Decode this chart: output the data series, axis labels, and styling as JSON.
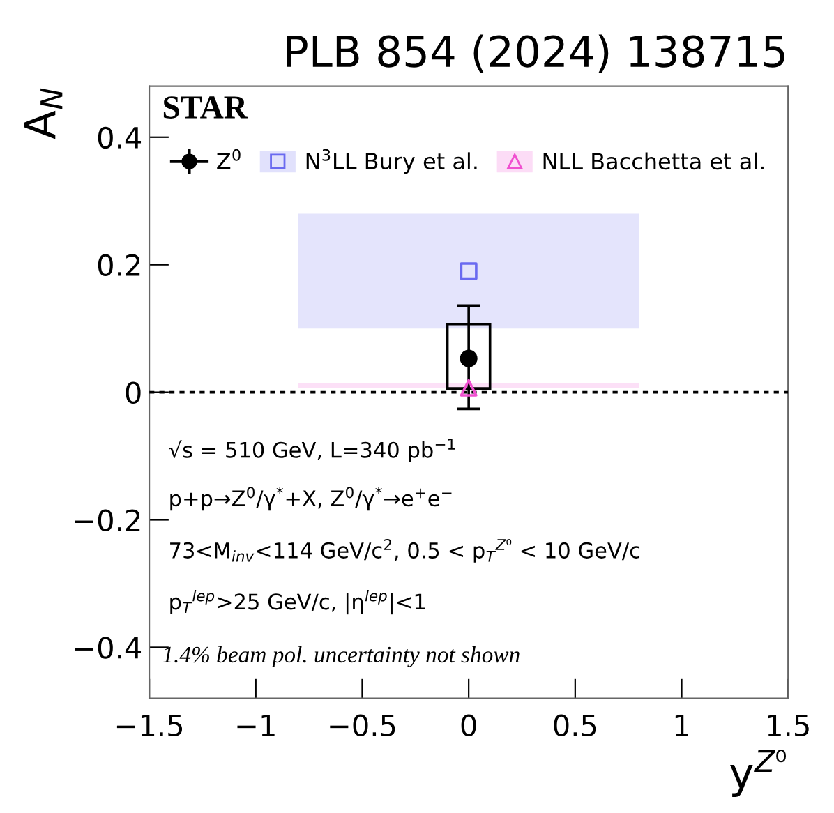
{
  "chart_data": {
    "type": "scatter",
    "title": "PLB 854 (2024) 138715",
    "xlabel": "y$^{Z⁰}$",
    "ylabel": "A$_{N}$",
    "xlim": [
      -1.5,
      1.5
    ],
    "ylim": [
      -0.48,
      0.48
    ],
    "xticks": [
      {
        "value": -1.5,
        "label": "−1.5"
      },
      {
        "value": -1,
        "label": "−1"
      },
      {
        "value": -0.5,
        "label": "−0.5"
      },
      0,
      0.5,
      1,
      1.5
    ],
    "yticks": [
      {
        "value": -0.4,
        "label": "−0.4"
      },
      {
        "value": -0.2,
        "label": "−0.2"
      },
      0,
      0.2,
      0.4
    ],
    "series": [
      {
        "name": "Z$^{0}$",
        "marker": "circle",
        "color": "#000000",
        "x": [
          0
        ],
        "values": [
          0.053
        ],
        "errors": [
          [
            -0.026,
            0.136
          ]
        ]
      },
      {
        "type": "bar",
        "color": "#000000",
        "x": [
          0
        ],
        "base": [
          0.006
        ],
        "values": [
          0.101
        ]
      },
      {
        "name": "N$^{3}$LL Bury et al.",
        "marker": "square",
        "color": "#6a6af0",
        "x": [
          -0.8,
          0,
          0.8
        ],
        "values": [
          null,
          0.19,
          null
        ],
        "lower": [
          0.1,
          0.1,
          0.1
        ],
        "upper": [
          0.28,
          0.28,
          0.28
        ]
      },
      {
        "name": "NLL Bacchetta et al.",
        "marker": "triangle",
        "color": "#f050d0",
        "x": [
          -0.8,
          0,
          0.8
        ],
        "values": [
          null,
          0.007,
          null
        ],
        "lower": [
          0.006,
          0.006,
          0.006
        ],
        "upper": [
          0.014,
          0.014,
          0.014
        ]
      }
    ],
    "ref_lines": [
      {
        "axis": "y",
        "value": 0,
        "line_style": "dotted",
        "color": "#000000"
      }
    ],
    "legend": "top",
    "annotations": [
      "STAR",
      "√s = 510 GeV, L=340 pb$^{−1}$",
      "p+p→Z$^{0}$/γ$^{*}$+X, Z$^{0}$/γ$^{*}$→e$^{+}$e$^{−}$",
      "73<M$_{inv}$<114 GeV/c$^{2}$, 0.5 < p$_{T}$$^{Z⁰}$ < 10 GeV/c",
      "p$_{T}$$^{lep}$>25 GeV/c, |η$^{lep}$|<1",
      "1.4% beam pol. uncertainty not shown"
    ]
  }
}
